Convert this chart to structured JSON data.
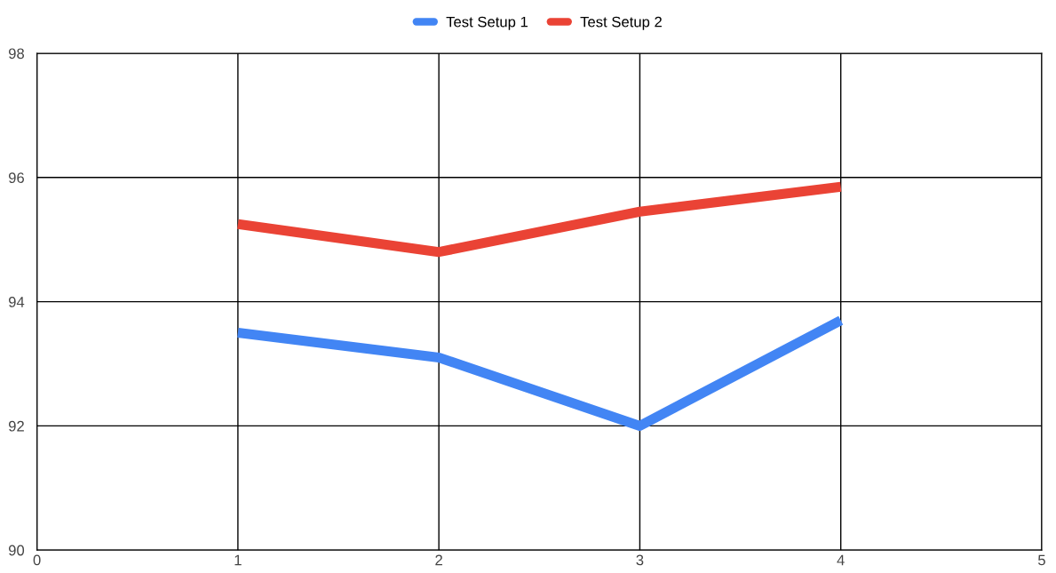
{
  "chart_data": {
    "type": "line",
    "x": [
      1,
      2,
      3,
      4
    ],
    "series": [
      {
        "name": "Test Setup 1",
        "color": "#4285f4",
        "values": [
          93.5,
          93.1,
          92.0,
          93.7
        ]
      },
      {
        "name": "Test Setup 2",
        "color": "#ea4335",
        "values": [
          95.25,
          94.8,
          95.45,
          95.85
        ]
      }
    ],
    "xlim": [
      0,
      5
    ],
    "xticks": [
      0,
      1,
      2,
      3,
      4,
      5
    ],
    "ylim": [
      90,
      98
    ],
    "yticks": [
      90,
      92,
      94,
      96,
      98
    ],
    "grid": true,
    "legend": "top",
    "marker": "none",
    "line_style": "solid"
  }
}
